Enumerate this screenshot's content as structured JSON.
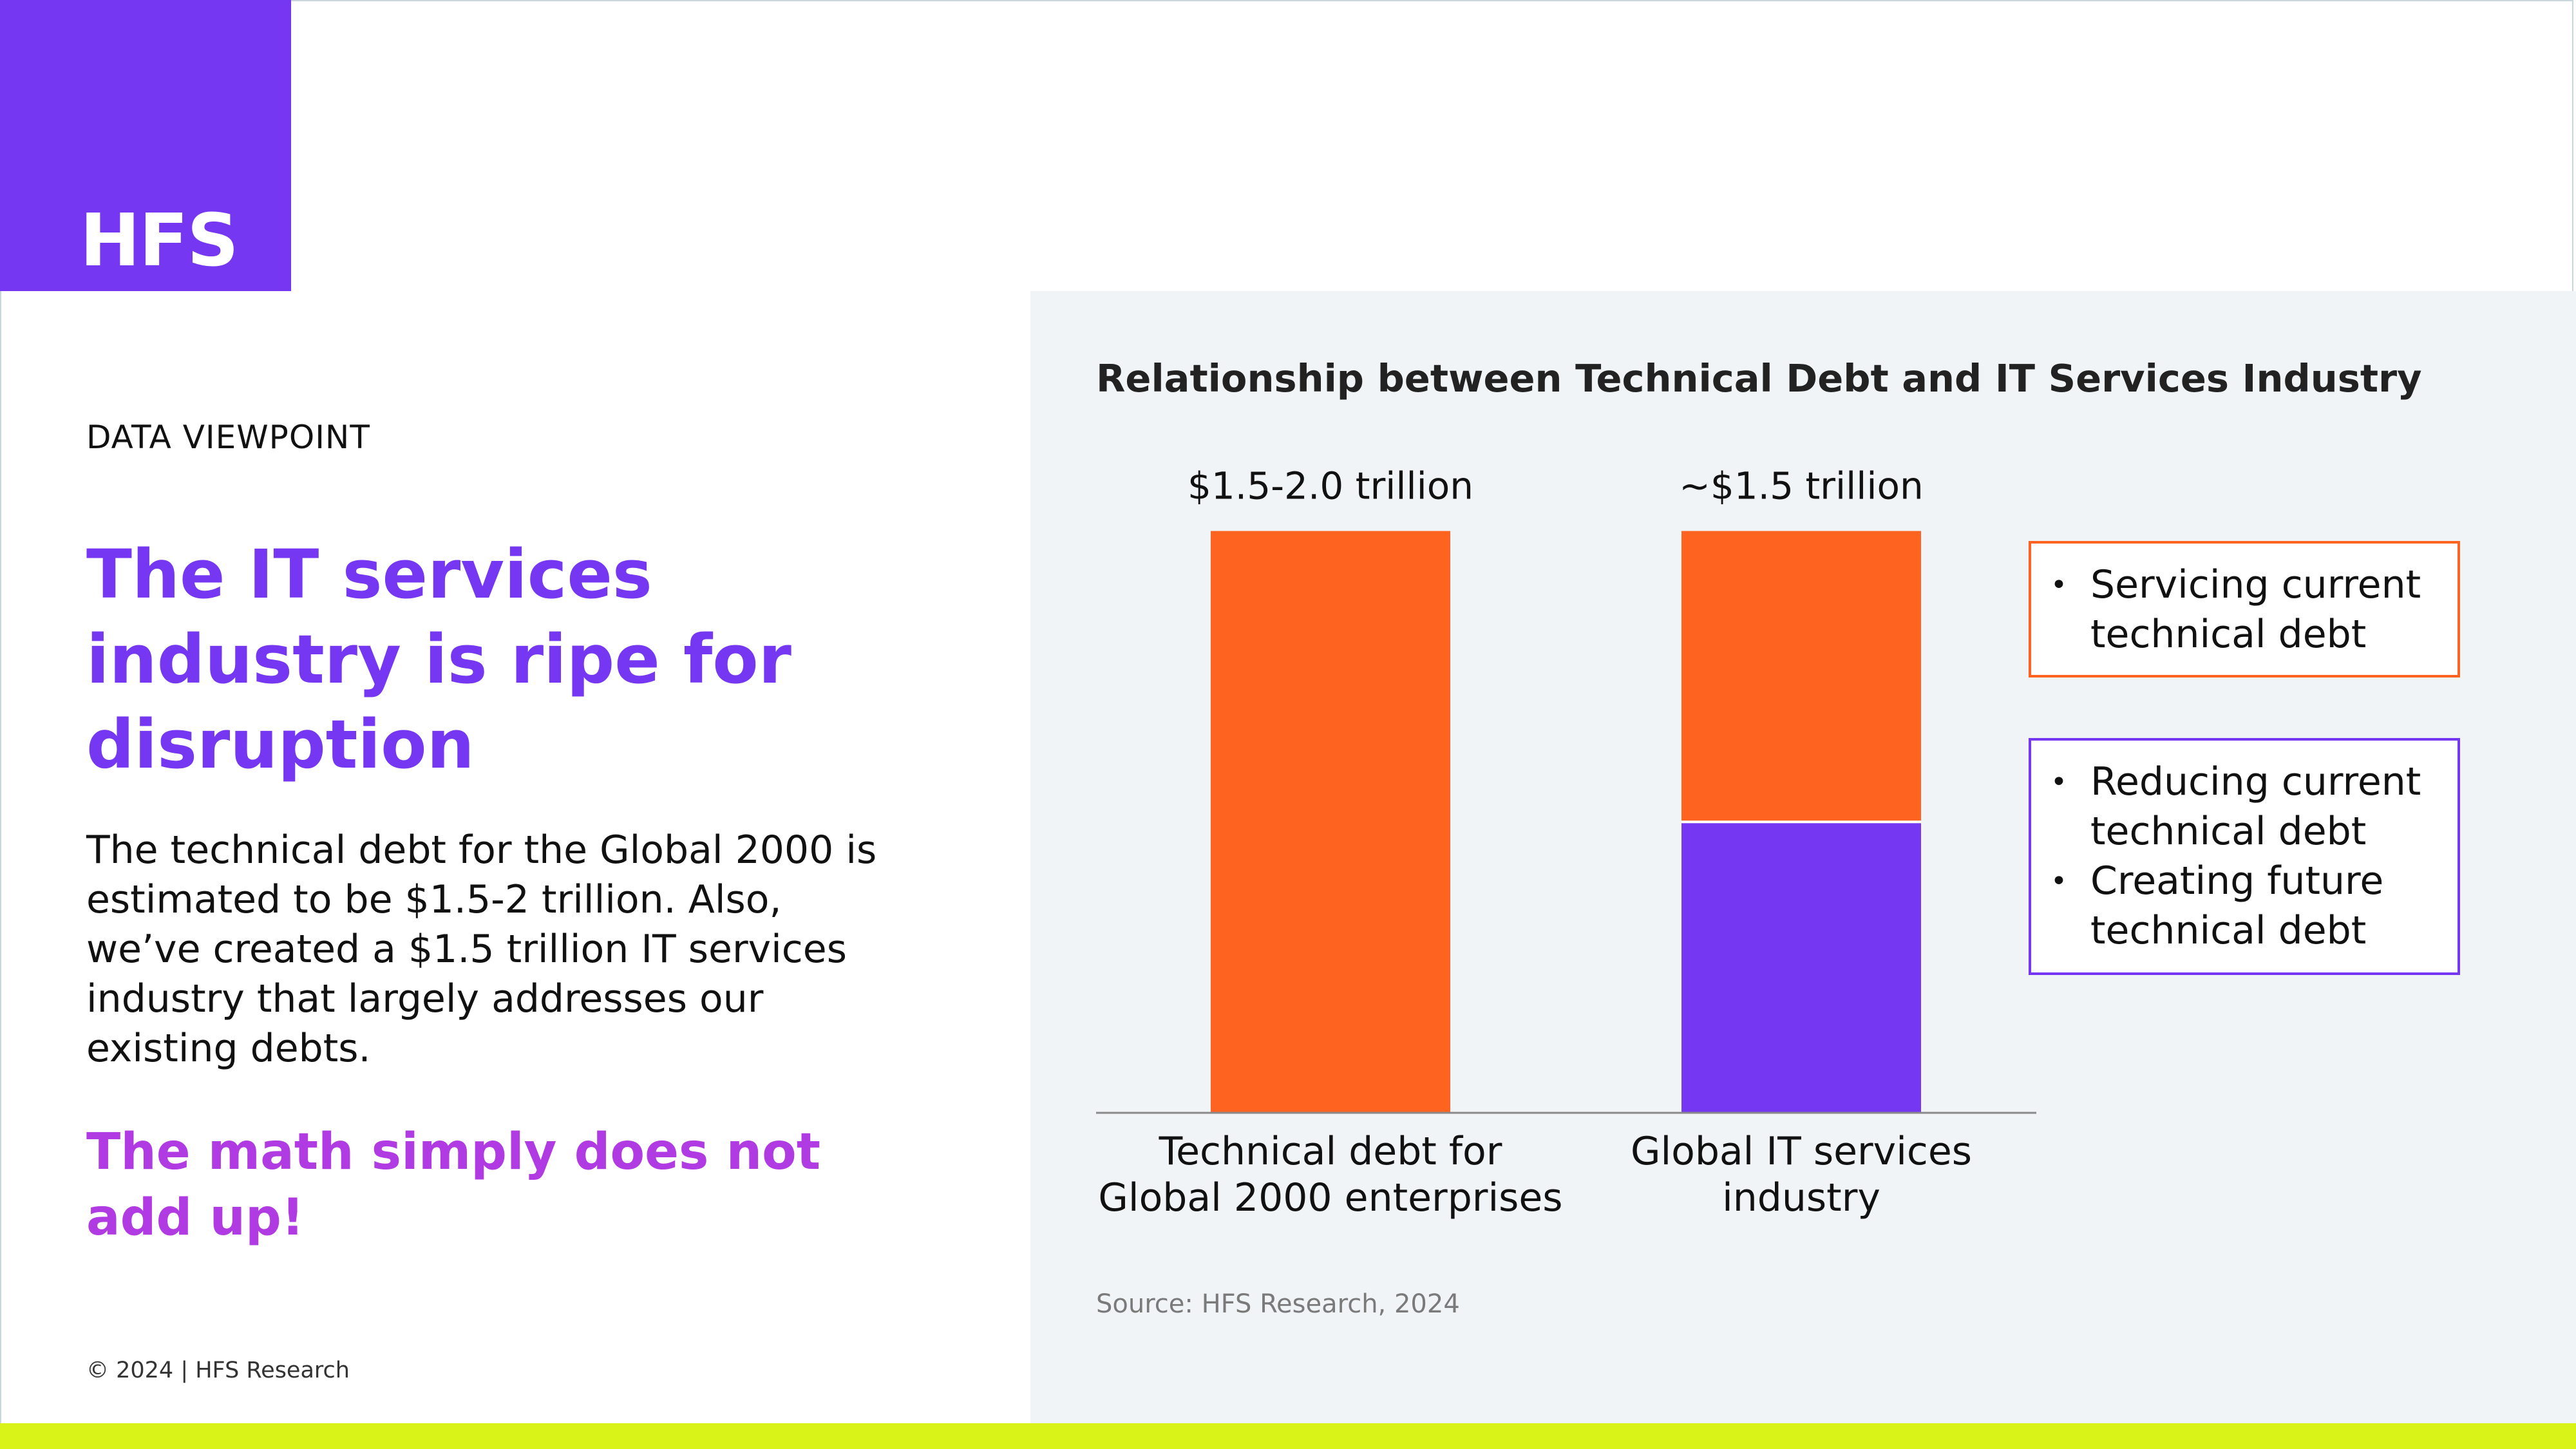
{
  "brand": {
    "logo_text": "HFS",
    "purple": "#7537f1",
    "orange": "#ff6320",
    "magenta": "#b03be2",
    "lime": "#d9f218"
  },
  "left": {
    "eyebrow": "DATA VIEWPOINT",
    "headline": "The IT services industry is ripe for disruption",
    "body": "The technical debt for the Global 2000 is estimated to be $1.5-2 trillion. Also, we’ve created a $1.5 trillion IT services industry that largely addresses our existing debts.",
    "punchline": "The math simply does not add up!",
    "footer": "© 2024 | HFS Research"
  },
  "chart_data": {
    "type": "bar",
    "title": "Relationship between Technical Debt and IT Services Industry",
    "categories": [
      "Technical debt for Global 2000 enterprises",
      "Global IT services industry"
    ],
    "category_lines": [
      [
        "Technical debt for",
        "Global 2000 enterprises"
      ],
      [
        "Global IT services",
        "industry"
      ]
    ],
    "value_labels": [
      "$1.5-2.0 trillion",
      "~$1.5 trillion"
    ],
    "unit": "trillion USD",
    "stacked": true,
    "series": [
      {
        "name": "Reducing current technical debt / Creating future technical debt",
        "color": "#7537f1",
        "values": [
          0,
          0.75
        ]
      },
      {
        "name": "Servicing current technical debt",
        "color": "#ff6320",
        "values": [
          1.5,
          0.75
        ]
      }
    ],
    "ylim": [
      0,
      2.25
    ],
    "grid": false,
    "source": "Source: HFS Research, 2024"
  },
  "legend": {
    "orange_items": [
      [
        "Servicing current",
        "technical debt"
      ]
    ],
    "purple_items": [
      [
        "Reducing current",
        "technical debt"
      ],
      [
        "Creating future",
        "technical debt"
      ]
    ],
    "bullet": "•"
  }
}
